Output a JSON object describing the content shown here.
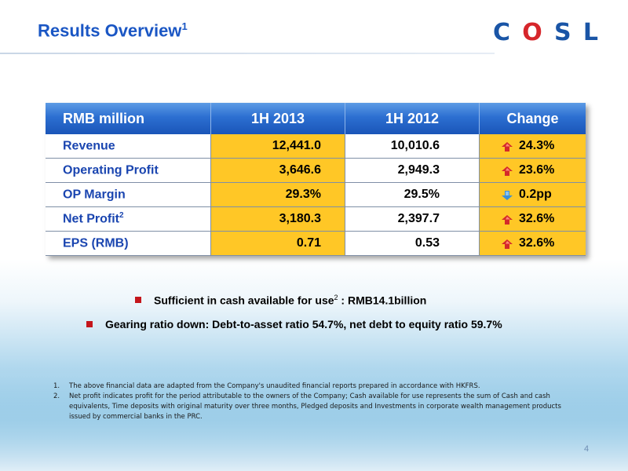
{
  "header": {
    "title": "Results Overview",
    "title_note": "1",
    "logo_letters": [
      "C",
      "O",
      "S",
      "L"
    ],
    "logo_colors": {
      "blue": "#1a55a6",
      "red": "#d6262b"
    }
  },
  "table": {
    "columns": [
      "RMB million",
      "1H 2013",
      "1H 2012",
      "Change"
    ],
    "rows": [
      {
        "label": "Revenue",
        "note": "",
        "h1_2013": "12,441.0",
        "h1_2012": "10,010.6",
        "change": "24.3%",
        "direction": "up"
      },
      {
        "label": "Operating Profit",
        "note": "",
        "h1_2013": "3,646.6",
        "h1_2012": "2,949.3",
        "change": "23.6%",
        "direction": "up"
      },
      {
        "label": "OP Margin",
        "note": "",
        "h1_2013": "29.3%",
        "h1_2012": "29.5%",
        "change": "0.2pp",
        "direction": "down"
      },
      {
        "label": "Net Profit",
        "note": "2",
        "h1_2013": "3,180.3",
        "h1_2012": "2,397.7",
        "change": "32.6%",
        "direction": "up"
      },
      {
        "label": "EPS (RMB)",
        "note": "",
        "h1_2013": "0.71",
        "h1_2012": "0.53",
        "change": "32.6%",
        "direction": "up"
      }
    ],
    "colors": {
      "header_blue": "#2c6fd1",
      "highlight": "#ffc726",
      "label_blue": "#1a45b0"
    }
  },
  "bullets": [
    {
      "pre": "Sufficient  in cash available for use",
      "note": "2",
      "post": " : RMB14.1billion"
    },
    {
      "pre": "Gearing ratio down: Debt-to-asset ratio 54.7%, net debt to equity ratio 59.7%",
      "note": "",
      "post": ""
    }
  ],
  "footnotes": [
    {
      "num": "1.",
      "text": "The above financial data are adapted from the Company's unaudited financial reports prepared in accordance with HKFRS."
    },
    {
      "num": "2.",
      "text": "Net profit indicates  profit for the period attributable to the owners of the Company; Cash available for use represents the sum of Cash and cash equivalents, Time deposits with original maturity over three months, Pledged deposits and Investments in corporate wealth management products issued by commercial banks in the PRC."
    }
  ],
  "page_number": "4"
}
